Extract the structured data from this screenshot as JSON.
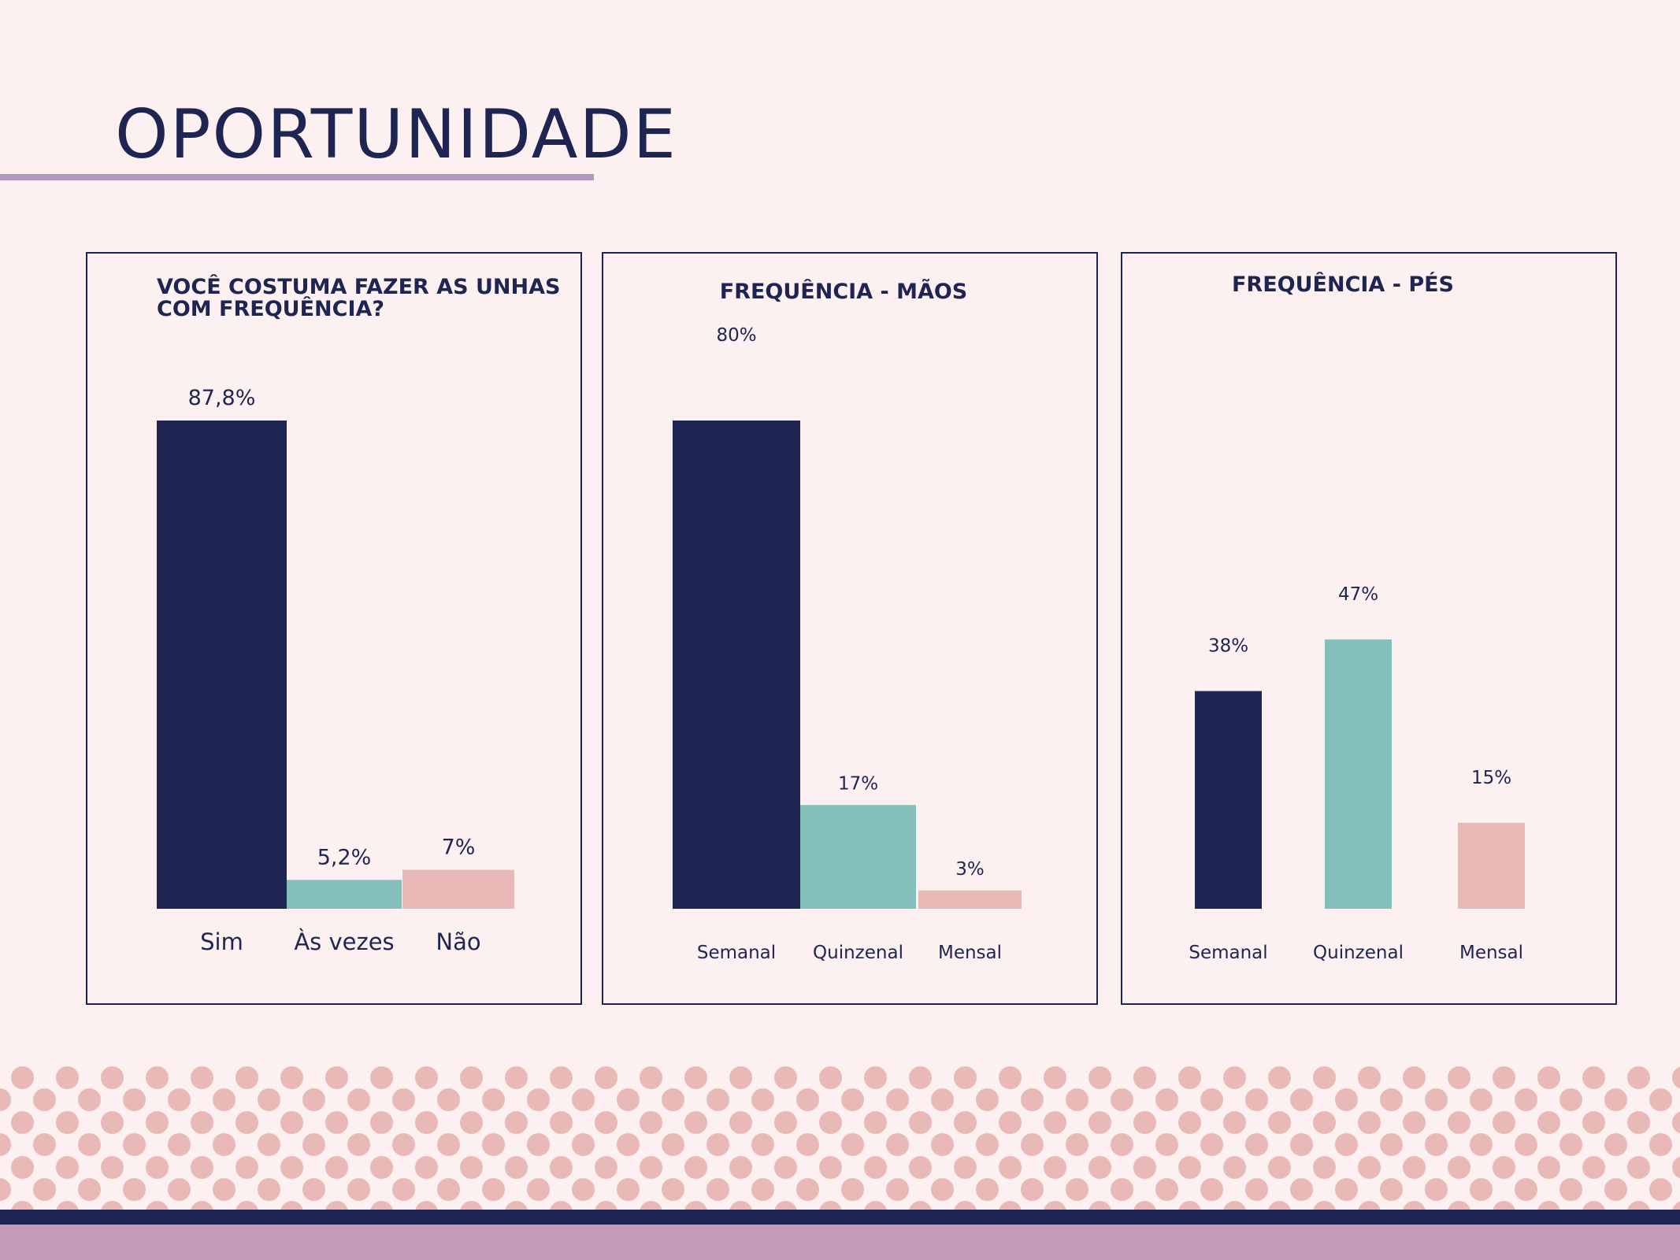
{
  "page": {
    "title": "OPORTUNIDADE"
  },
  "colors": {
    "navy": "#1f2552",
    "teal": "#84bfbb",
    "pink": "#e8b9b7",
    "lilac": "#c39bb9",
    "background": "#fcf0f0"
  },
  "chart_data": [
    {
      "type": "bar",
      "title_lines": [
        "VOCÊ COSTUMA FAZER AS UNHAS",
        "COM FREQUÊNCIA?"
      ],
      "categories": [
        "Sim",
        "Às vezes",
        "Não"
      ],
      "values": [
        87.8,
        5.2,
        7
      ],
      "value_labels": [
        "87,8%",
        "5,2%",
        "7%"
      ],
      "colors": [
        "#1f2552",
        "#84bfbb",
        "#e8b9b7"
      ],
      "ylim": [
        0,
        87.8
      ],
      "xlabel": "",
      "ylabel": "",
      "grid": false,
      "legend": "none"
    },
    {
      "type": "bar",
      "title_lines": [
        "FREQUÊNCIA - MÃOS"
      ],
      "categories": [
        "Semanal",
        "Quinzenal",
        "Mensal"
      ],
      "values": [
        80,
        17,
        3
      ],
      "value_labels": [
        "80%",
        "17%",
        "3%"
      ],
      "colors": [
        "#1f2552",
        "#84bfbb",
        "#e8b9b7"
      ],
      "ylim": [
        0,
        80
      ],
      "xlabel": "",
      "ylabel": "",
      "grid": false,
      "legend": "none"
    },
    {
      "type": "bar",
      "title_lines": [
        "FREQUÊNCIA - PÉS"
      ],
      "categories": [
        "Semanal",
        "Quinzenal",
        "Mensal"
      ],
      "values": [
        38,
        47,
        15
      ],
      "value_labels": [
        "38%",
        "47%",
        "15%"
      ],
      "colors": [
        "#1f2552",
        "#84bfbb",
        "#e8b9b7"
      ],
      "ylim": [
        0,
        80
      ],
      "xlabel": "",
      "ylabel": "",
      "grid": false,
      "legend": "none"
    }
  ]
}
